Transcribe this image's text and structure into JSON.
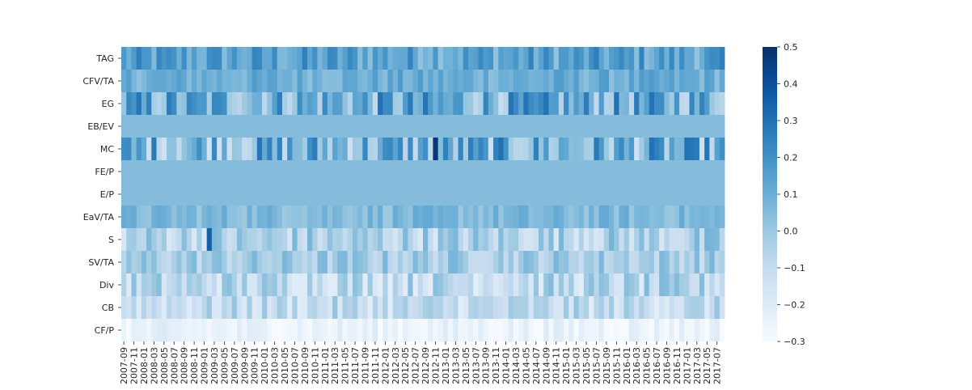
{
  "chart_data": {
    "type": "heatmap",
    "title": "",
    "xlabel": "",
    "ylabel": "",
    "rows": [
      "TAG",
      "CFV/TA",
      "EG",
      "EB/EV",
      "MC",
      "FE/P",
      "E/P",
      "EaV/TA",
      "S",
      "SV/TA",
      "Div",
      "CB",
      "CF/P"
    ],
    "x_tick_labels": [
      "2007-09",
      "2007-11",
      "2008-01",
      "2008-03",
      "2008-05",
      "2008-07",
      "2008-09",
      "2008-11",
      "2009-01",
      "2009-03",
      "2009-05",
      "2009-07",
      "2009-09",
      "2009-11",
      "2010-01",
      "2010-03",
      "2010-05",
      "2010-07",
      "2010-09",
      "2010-11",
      "2011-01",
      "2011-03",
      "2011-05",
      "2011-07",
      "2011-09",
      "2011-11",
      "2012-01",
      "2012-03",
      "2012-05",
      "2012-07",
      "2012-09",
      "2012-11",
      "2013-01",
      "2013-03",
      "2013-05",
      "2013-07",
      "2013-09",
      "2013-11",
      "2014-01",
      "2014-03",
      "2014-05",
      "2014-07",
      "2014-09",
      "2014-11",
      "2015-01",
      "2015-03",
      "2015-05",
      "2015-07",
      "2015-09",
      "2015-11",
      "2016-01",
      "2016-03",
      "2016-05",
      "2016-07",
      "2016-09",
      "2016-11",
      "2017-01",
      "2017-03",
      "2017-05",
      "2017-07"
    ],
    "n_columns": 120,
    "columns_per_tick": 2,
    "vmin": -0.3,
    "vmax": 0.5,
    "colormap": "Blues",
    "colorbar_ticks": [
      "0.5",
      "0.4",
      "0.3",
      "0.2",
      "0.1",
      "0.0",
      "−0.1",
      "−0.2",
      "−0.3"
    ],
    "colorbar_tick_values": [
      0.5,
      0.4,
      0.3,
      0.2,
      0.1,
      0.0,
      -0.1,
      -0.2,
      -0.3
    ],
    "row_typical_values": {
      "TAG": 0.14,
      "CFV/TA": 0.1,
      "EG": 0.1,
      "EB/EV": 0.05,
      "MC": 0.08,
      "FE/P": 0.05,
      "E/P": 0.05,
      "EaV/TA": 0.06,
      "S": -0.05,
      "SV/TA": -0.02,
      "Div": -0.08,
      "CB": -0.1,
      "CF/P": -0.25
    },
    "grid": false,
    "legend": "colorbar-right"
  }
}
